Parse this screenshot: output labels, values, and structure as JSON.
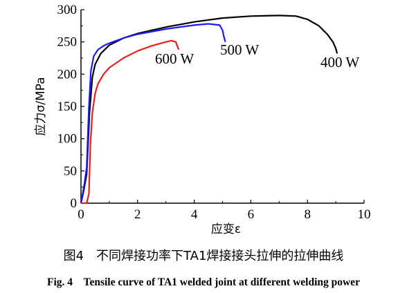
{
  "chart_data": {
    "type": "line",
    "xlabel": "应变ε",
    "ylabel": "应力σ/MPa",
    "xlim": [
      0,
      10
    ],
    "ylim": [
      0,
      300
    ],
    "xticks": [
      0,
      2,
      4,
      6,
      8,
      10
    ],
    "yticks": [
      0,
      50,
      100,
      150,
      200,
      250,
      300
    ],
    "series": [
      {
        "name": "400 W",
        "color": "#000000",
        "x": [
          0,
          0.06,
          0.12,
          0.2,
          0.3,
          0.4,
          0.5,
          0.7,
          1.0,
          1.5,
          2.0,
          3.0,
          4.0,
          5.0,
          6.0,
          7.0,
          7.6,
          8.0,
          8.4,
          8.7,
          8.9,
          9.0,
          9.05
        ],
        "y": [
          0,
          12,
          25,
          45,
          140,
          195,
          215,
          232,
          245,
          256,
          263,
          273,
          281,
          287,
          290,
          291,
          290,
          285,
          275,
          262,
          250,
          240,
          232
        ]
      },
      {
        "name": "500 W",
        "color": "#1a1aff",
        "x": [
          0,
          0.06,
          0.12,
          0.2,
          0.28,
          0.35,
          0.45,
          0.6,
          0.8,
          1.0,
          1.5,
          2.0,
          3.0,
          4.0,
          4.5,
          4.9,
          5.0,
          5.05,
          5.1
        ],
        "y": [
          0,
          15,
          30,
          55,
          150,
          205,
          228,
          238,
          244,
          248,
          256,
          262,
          270,
          276,
          278,
          276,
          268,
          258,
          250
        ]
      },
      {
        "name": "600 W",
        "color": "#e02020",
        "x": [
          0,
          0.2,
          0.28,
          0.33,
          0.4,
          0.5,
          0.6,
          0.8,
          1.0,
          1.5,
          2.0,
          2.5,
          3.0,
          3.2,
          3.35,
          3.4,
          3.45
        ],
        "y": [
          0,
          0,
          15,
          90,
          140,
          170,
          185,
          200,
          210,
          225,
          236,
          244,
          250,
          252,
          250,
          244,
          238
        ]
      }
    ]
  },
  "captions": {
    "cn": "图4　不同焊接功率下TA1焊接接头拉伸的拉伸曲线",
    "en": "Fig. 4　Tensile curve of TA1 welded joint at different welding power"
  }
}
